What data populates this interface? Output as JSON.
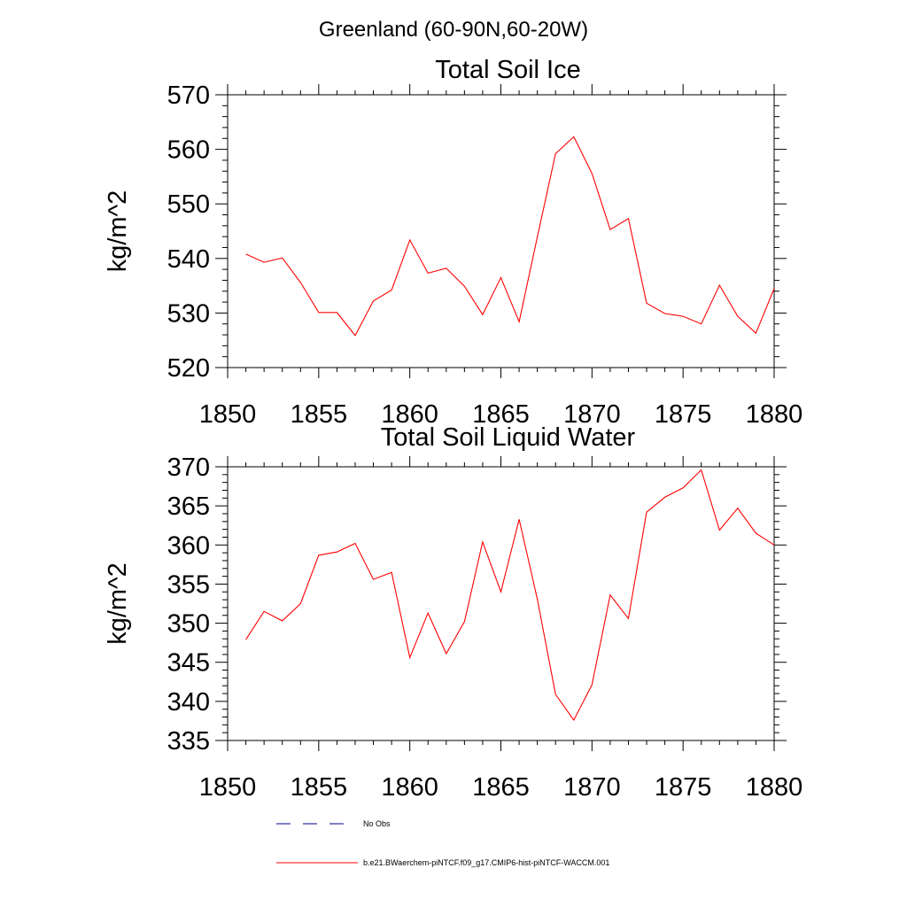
{
  "figure_title": "Greenland (60-90N,60-20W)",
  "legend": {
    "obs_label": "No Obs",
    "model_label": "b.e21.BWaerchem-piNTCF.f09_g17.CMIP6-hist-piNTCF-WACCM.001"
  },
  "colors": {
    "model": "#ff0000",
    "obs": "#00008b",
    "axis": "#000000"
  },
  "chart_data": [
    {
      "type": "line",
      "title": "Total Soil Ice",
      "xlabel": "",
      "ylabel": "kg/m^2",
      "xlim": [
        1850,
        1880
      ],
      "ylim": [
        520,
        570
      ],
      "x_ticks": [
        1850,
        1855,
        1860,
        1865,
        1870,
        1875,
        1880
      ],
      "y_ticks": [
        520,
        530,
        540,
        550,
        560,
        570
      ],
      "y_minor_step": 2,
      "x_minor_step": 1,
      "grid": false,
      "series": [
        {
          "x": [
            1851,
            1852,
            1853,
            1854,
            1855,
            1856,
            1857,
            1858,
            1859,
            1860,
            1861,
            1862,
            1863,
            1864,
            1865,
            1866,
            1867,
            1868,
            1869,
            1870,
            1871,
            1872,
            1873,
            1874,
            1875,
            1876,
            1877,
            1878,
            1879,
            1880
          ],
          "values": [
            540.8,
            539.3,
            540.1,
            535.6,
            530.1,
            530.1,
            525.9,
            532.2,
            534.2,
            543.4,
            537.3,
            538.2,
            534.9,
            529.7,
            536.5,
            528.4,
            543.9,
            559.2,
            562.3,
            555.6,
            545.3,
            547.3,
            531.8,
            529.9,
            529.4,
            528.0,
            535.1,
            529.4,
            526.3,
            534.5
          ]
        }
      ]
    },
    {
      "type": "line",
      "title": "Total Soil Liquid Water",
      "xlabel": "",
      "ylabel": "kg/m^2",
      "xlim": [
        1850,
        1880
      ],
      "ylim": [
        335,
        370
      ],
      "x_ticks": [
        1850,
        1855,
        1860,
        1865,
        1870,
        1875,
        1880
      ],
      "y_ticks": [
        335,
        340,
        345,
        350,
        355,
        360,
        365,
        370
      ],
      "y_minor_step": 1,
      "x_minor_step": 1,
      "grid": false,
      "series": [
        {
          "x": [
            1851,
            1852,
            1853,
            1854,
            1855,
            1856,
            1857,
            1858,
            1859,
            1860,
            1861,
            1862,
            1863,
            1864,
            1865,
            1866,
            1867,
            1868,
            1869,
            1870,
            1871,
            1872,
            1873,
            1874,
            1875,
            1876,
            1877,
            1878,
            1879,
            1880
          ],
          "values": [
            347.9,
            351.5,
            350.3,
            352.5,
            358.7,
            359.1,
            360.2,
            355.6,
            356.5,
            345.6,
            351.3,
            346.1,
            350.2,
            360.4,
            354.0,
            363.3,
            353.1,
            340.9,
            337.6,
            342.1,
            353.6,
            350.6,
            364.2,
            366.1,
            367.3,
            369.6,
            361.9,
            364.7,
            361.5,
            360.0
          ]
        }
      ]
    }
  ]
}
